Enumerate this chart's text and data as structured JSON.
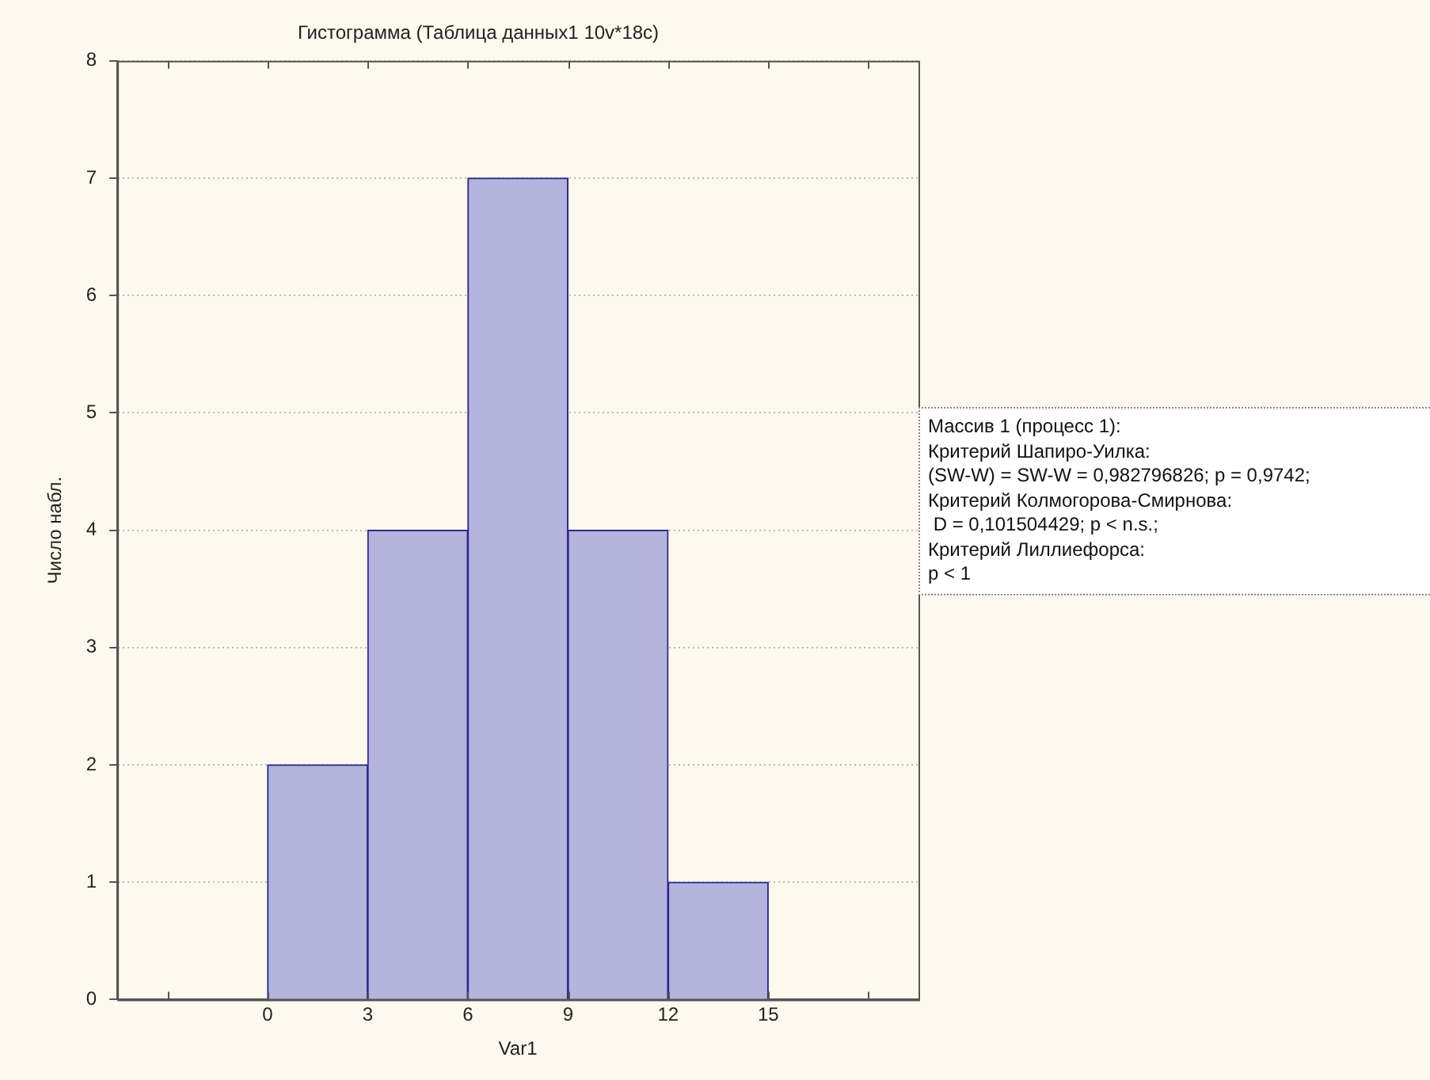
{
  "chart_data": {
    "type": "histogram",
    "title": "Гистограмма (Таблица данных1 10v*18c)",
    "xlabel": "Var1",
    "ylabel": "Число набл.",
    "bins": [
      0,
      3,
      6,
      9,
      12,
      15
    ],
    "values": [
      2,
      4,
      7,
      4,
      1
    ],
    "color": "#b4b4dc",
    "xlim": [
      -4.5,
      19.5
    ],
    "xticks": [
      {
        "value": -3,
        "label": null
      },
      0,
      3,
      6,
      9,
      12,
      15,
      {
        "value": 18,
        "label": null
      }
    ],
    "ylim": [
      0,
      8
    ],
    "yticks": [
      0,
      1,
      2,
      3,
      4,
      5,
      6,
      7,
      8
    ],
    "grid": "y",
    "legend": false,
    "annotations": [
      "Массив 1 (процесс 1):",
      "Критерий Шапиро-Уилка:",
      "(SW-W) = SW-W = 0,982796826; p = 0,9742;",
      "Критерий Колмогорова-Смирнова:",
      " D = 0,101504429; p < n.s.;",
      "Критерий Лиллиефорса:",
      "p < 1"
    ]
  }
}
